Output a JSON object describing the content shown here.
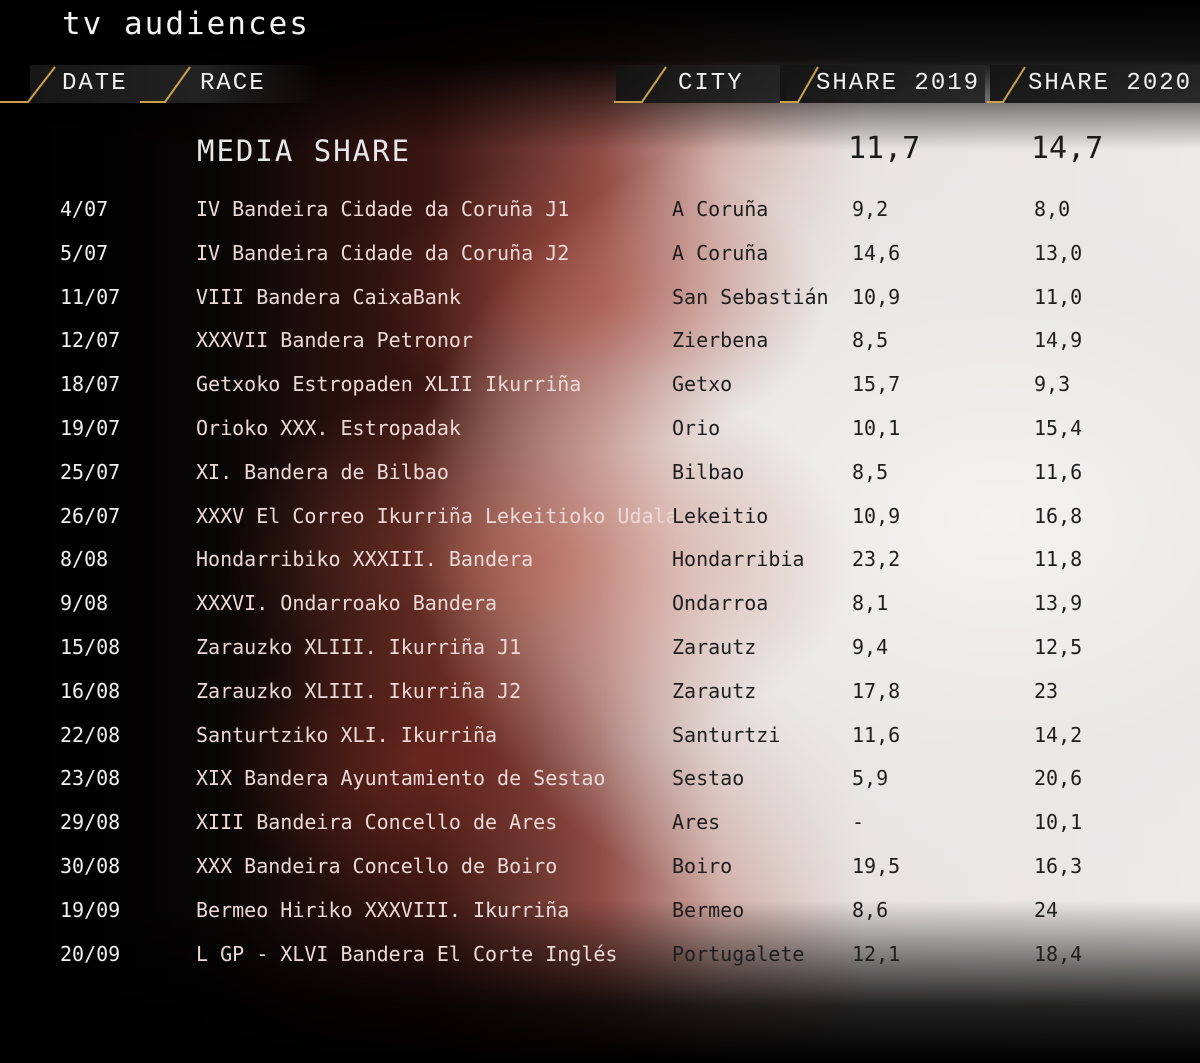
{
  "title": "tv audiences",
  "headers": {
    "date": "DATE",
    "race": "RACE",
    "city": "CITY",
    "share2019": "SHARE 2019",
    "share2020": "SHARE 2020"
  },
  "media": {
    "label": "MEDIA SHARE",
    "share2019": "11,7",
    "share2020": "14,7"
  },
  "rows": [
    {
      "date": "4/07",
      "race": "IV Bandeira Cidade da Coruña J1",
      "city": "A Coruña",
      "share2019": "9,2",
      "share2020": "8,0"
    },
    {
      "date": "5/07",
      "race": "IV Bandeira Cidade da Coruña J2",
      "city": "A Coruña",
      "share2019": "14,6",
      "share2020": "13,0"
    },
    {
      "date": "11/07",
      "race": "VIII Bandera CaixaBank",
      "city": "San Sebastián",
      "share2019": "10,9",
      "share2020": "11,0"
    },
    {
      "date": "12/07",
      "race": "XXXVII Bandera Petronor",
      "city": "Zierbena",
      "share2019": "8,5",
      "share2020": "14,9"
    },
    {
      "date": "18/07",
      "race": "Getxoko Estropaden XLII Ikurriña",
      "city": "Getxo",
      "share2019": "15,7",
      "share2020": "9,3"
    },
    {
      "date": "19/07",
      "race": "Orioko XXX. Estropadak",
      "city": "Orio",
      "share2019": "10,1",
      "share2020": "15,4"
    },
    {
      "date": "25/07",
      "race": "XI. Bandera de Bilbao",
      "city": "Bilbao",
      "share2019": "8,5",
      "share2020": "11,6"
    },
    {
      "date": "26/07",
      "race": "XXXV El Correo Ikurriña Lekeitioko Udala",
      "city": "Lekeitio",
      "share2019": "10,9",
      "share2020": "16,8"
    },
    {
      "date": "8/08",
      "race": "Hondarribiko XXXIII. Bandera",
      "city": "Hondarribia",
      "share2019": "23,2",
      "share2020": "11,8"
    },
    {
      "date": "9/08",
      "race": "XXXVI. Ondarroako Bandera",
      "city": "Ondarroa",
      "share2019": "8,1",
      "share2020": "13,9"
    },
    {
      "date": "15/08",
      "race": "Zarauzko XLIII. Ikurriña J1",
      "city": "Zarautz",
      "share2019": "9,4",
      "share2020": "12,5"
    },
    {
      "date": "16/08",
      "race": "Zarauzko XLIII. Ikurriña J2",
      "city": "Zarautz",
      "share2019": "17,8",
      "share2020": "23"
    },
    {
      "date": "22/08",
      "race": "Santurtziko XLI. Ikurriña",
      "city": "Santurtzi",
      "share2019": "11,6",
      "share2020": "14,2"
    },
    {
      "date": "23/08",
      "race": "XIX Bandera Ayuntamiento de Sestao",
      "city": "Sestao",
      "share2019": "5,9",
      "share2020": "20,6"
    },
    {
      "date": "29/08",
      "race": "XIII Bandeira Concello de Ares",
      "city": "Ares",
      "share2019": "-",
      "share2020": "10,1"
    },
    {
      "date": "30/08",
      "race": "XXX Bandeira Concello de Boiro",
      "city": "Boiro",
      "share2019": "19,5",
      "share2020": "16,3"
    },
    {
      "date": "19/09",
      "race": "Bermeo Hiriko XXXVIII. Ikurriña",
      "city": "Bermeo",
      "share2019": "8,6",
      "share2020": "24"
    },
    {
      "date": "20/09",
      "race": "L GP - XLVI Bandera El Corte Inglés",
      "city": "Portugalete",
      "share2019": "12,1",
      "share2020": "18,4"
    }
  ],
  "colors": {
    "accent": "#c9a04a",
    "dark_text": "#1e1e1e",
    "light_text": "#f0f0f0"
  }
}
